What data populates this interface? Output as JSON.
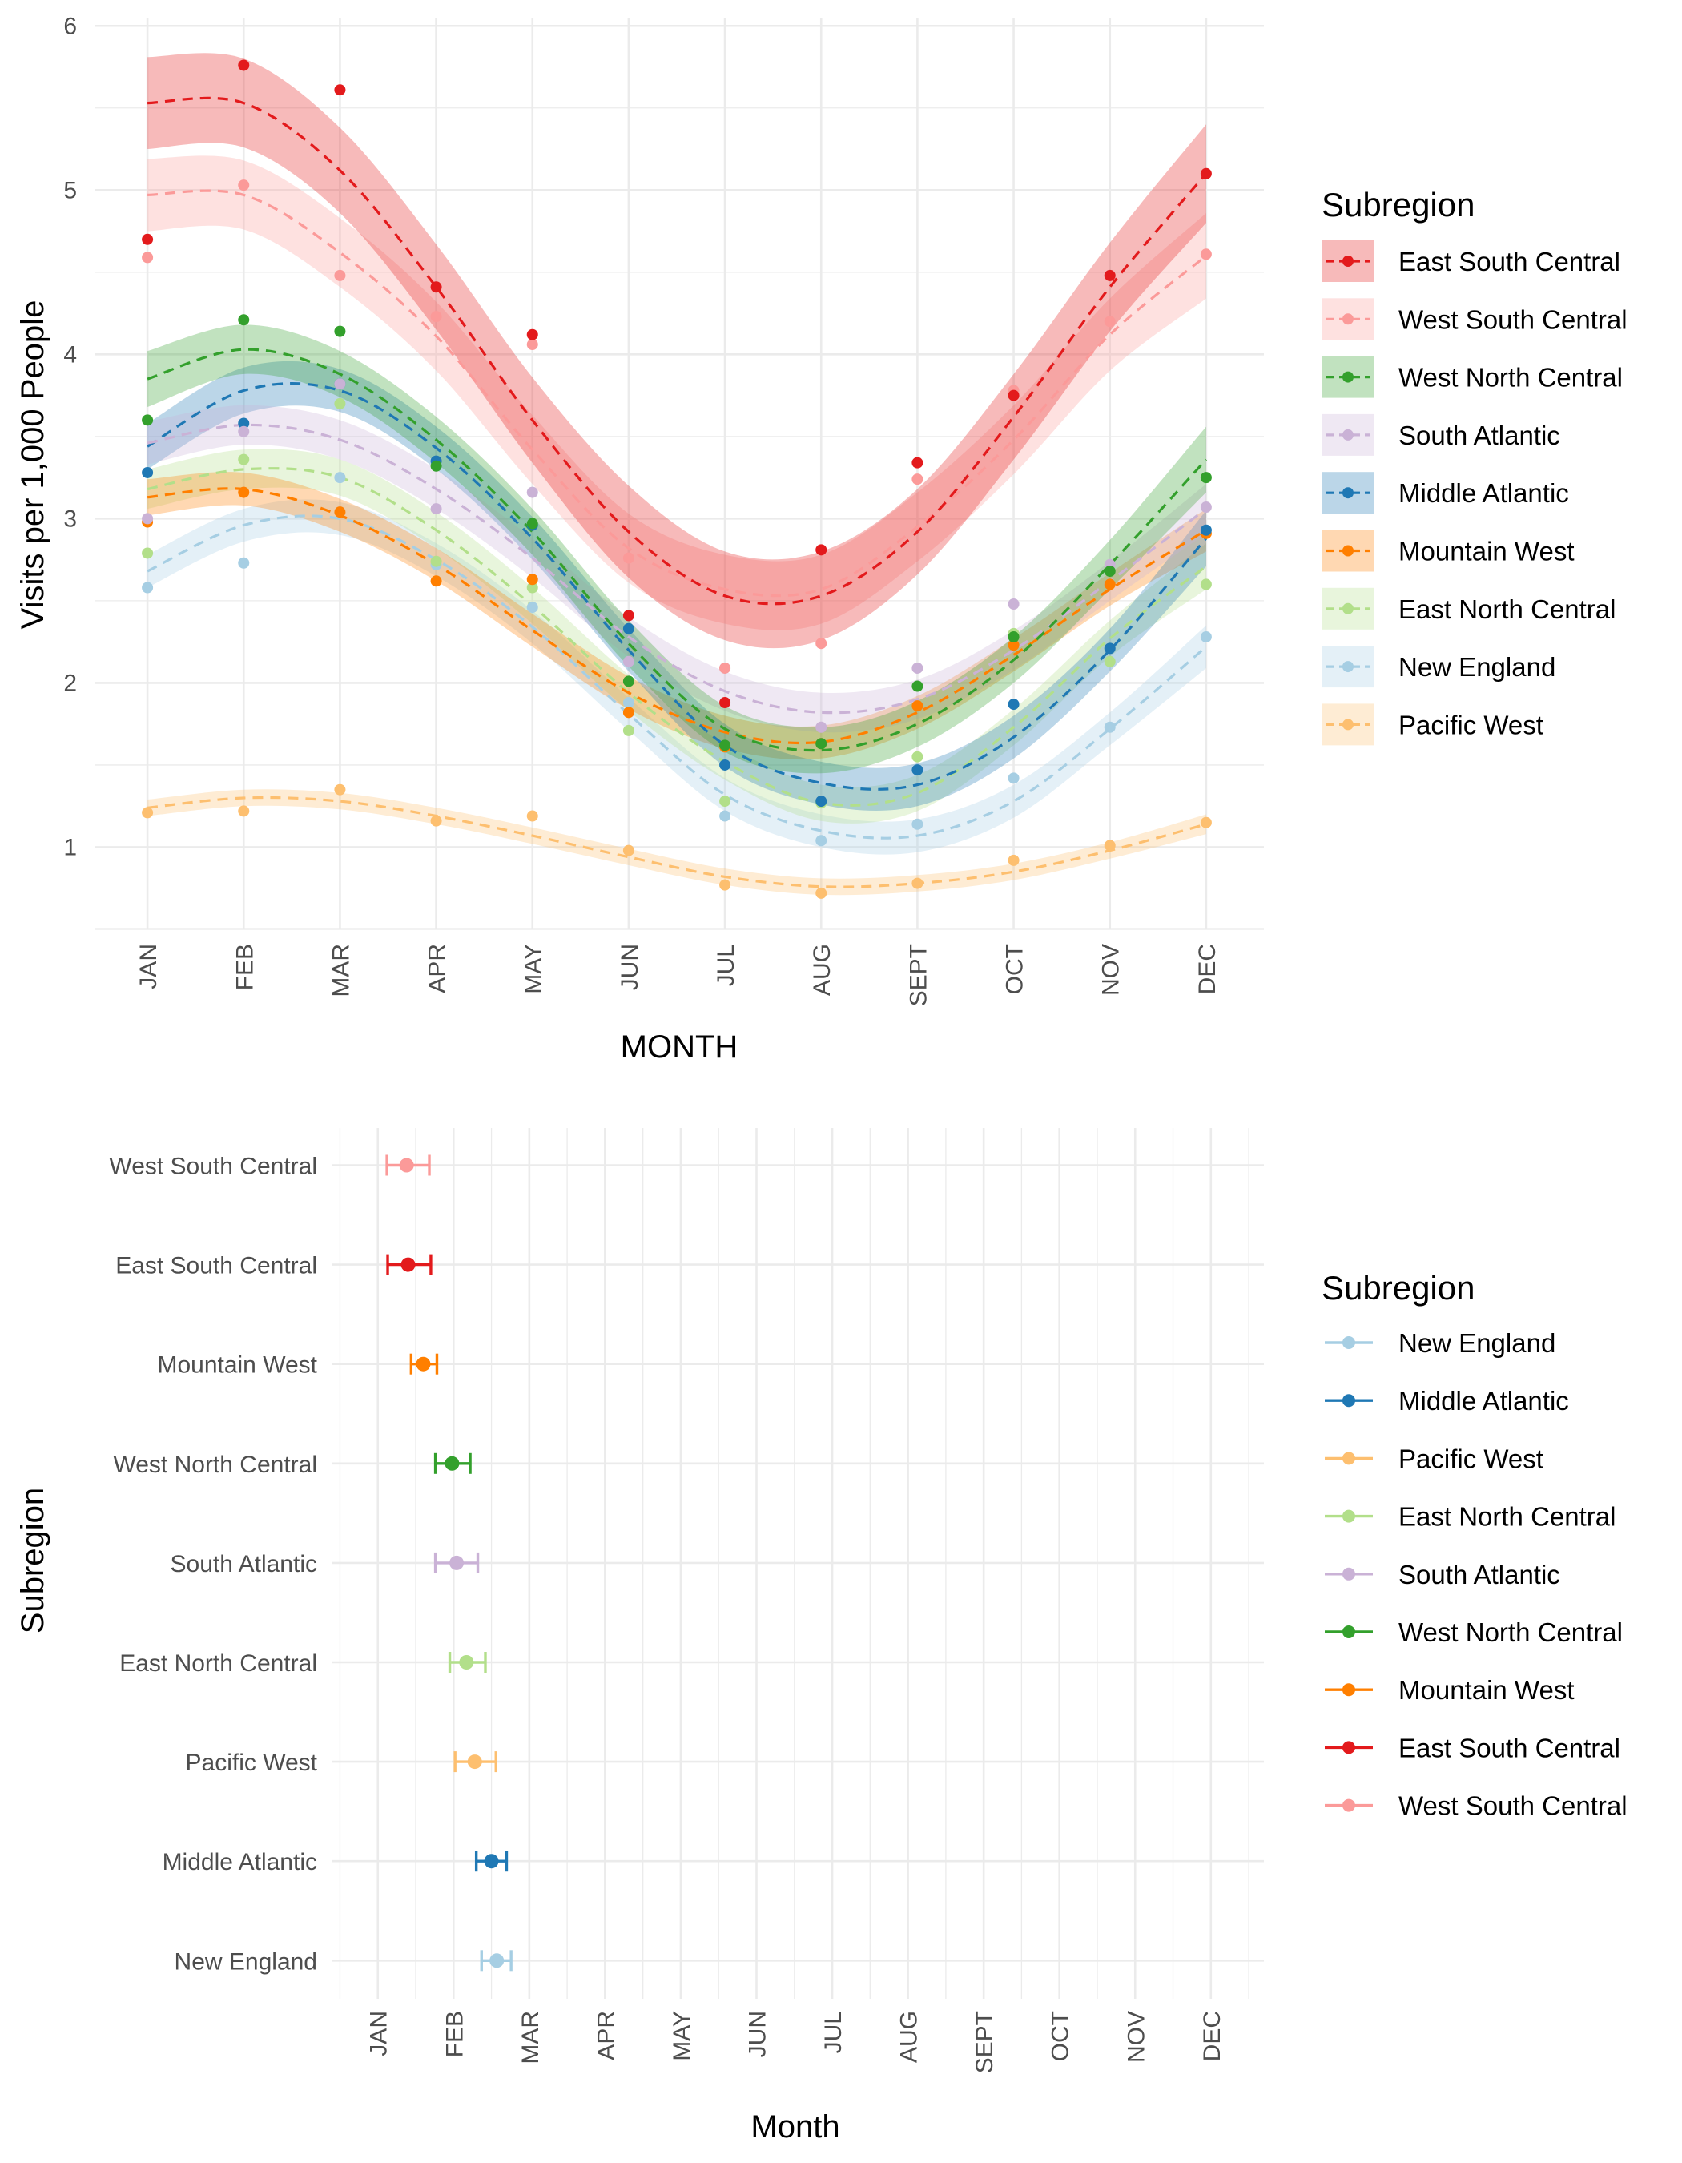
{
  "chart_data": [
    {
      "type": "line",
      "xlabel": "MONTH",
      "ylabel": "Visits per 1,000 People",
      "categories": [
        "JAN",
        "FEB",
        "MAR",
        "APR",
        "MAY",
        "JUN",
        "JUL",
        "AUG",
        "SEPT",
        "OCT",
        "NOV",
        "DEC"
      ],
      "ylim": [
        0.5,
        6.05
      ],
      "yticks": [
        "1",
        "2",
        "3",
        "4",
        "5",
        "6"
      ],
      "grid": true,
      "legend": {
        "title": "Subregion",
        "position": "right"
      },
      "series": [
        {
          "name": "East South Central",
          "color": "#e31a1c",
          "points": [
            4.7,
            5.76,
            5.61,
            4.41,
            4.12,
            2.41,
            1.88,
            2.81,
            3.34,
            3.75,
            4.48,
            5.1
          ],
          "fit": [
            5.53,
            5.53,
            5.12,
            4.41,
            3.6,
            2.92,
            2.53,
            2.53,
            2.92,
            3.62,
            4.41,
            5.1
          ],
          "ribbon": [
            0.28,
            0.27,
            0.26,
            0.26,
            0.26,
            0.28,
            0.27,
            0.27,
            0.26,
            0.26,
            0.27,
            0.3
          ]
        },
        {
          "name": "West South Central",
          "color": "#fb9a99",
          "points": [
            4.59,
            5.03,
            4.48,
            4.23,
            4.06,
            2.76,
            2.09,
            2.24,
            3.24,
            3.78,
            4.2,
            4.61
          ],
          "fit": [
            4.97,
            4.97,
            4.62,
            4.11,
            3.42,
            2.82,
            2.57,
            2.57,
            2.95,
            3.48,
            4.12,
            4.6
          ],
          "ribbon": [
            0.22,
            0.21,
            0.21,
            0.21,
            0.21,
            0.21,
            0.21,
            0.21,
            0.21,
            0.21,
            0.22,
            0.26
          ]
        },
        {
          "name": "West North Central",
          "color": "#33a02c",
          "points": [
            3.6,
            4.21,
            4.14,
            3.32,
            2.97,
            2.01,
            1.62,
            1.63,
            1.98,
            2.28,
            2.68,
            3.25
          ],
          "fit": [
            3.85,
            4.03,
            3.88,
            3.48,
            2.92,
            2.24,
            1.72,
            1.59,
            1.75,
            2.14,
            2.72,
            3.36
          ],
          "ribbon": [
            0.17,
            0.15,
            0.14,
            0.14,
            0.14,
            0.14,
            0.14,
            0.14,
            0.14,
            0.14,
            0.15,
            0.2
          ]
        },
        {
          "name": "South Atlantic",
          "color": "#cab2d6",
          "points": [
            3.0,
            3.53,
            3.82,
            3.06,
            3.16,
            2.13,
            2.09,
            1.73,
            2.09,
            2.48,
            2.72,
            3.07
          ],
          "fit": [
            3.46,
            3.57,
            3.48,
            3.18,
            2.76,
            2.28,
            1.95,
            1.82,
            1.9,
            2.2,
            2.62,
            3.06
          ],
          "ribbon": [
            0.13,
            0.12,
            0.12,
            0.12,
            0.12,
            0.12,
            0.12,
            0.12,
            0.12,
            0.12,
            0.12,
            0.15
          ]
        },
        {
          "name": "Middle Atlantic",
          "color": "#1f78b4",
          "points": [
            3.28,
            3.58,
            3.82,
            3.35,
            2.96,
            2.33,
            1.5,
            1.28,
            1.47,
            1.87,
            2.21,
            2.93
          ],
          "fit": [
            3.44,
            3.78,
            3.78,
            3.43,
            2.88,
            2.2,
            1.62,
            1.39,
            1.38,
            1.67,
            2.2,
            2.88
          ],
          "ribbon": [
            0.14,
            0.14,
            0.13,
            0.13,
            0.13,
            0.13,
            0.13,
            0.13,
            0.13,
            0.13,
            0.13,
            0.17
          ]
        },
        {
          "name": "Mountain West",
          "color": "#ff7f00",
          "points": [
            2.98,
            3.16,
            3.04,
            2.62,
            2.63,
            1.82,
            1.61,
            1.63,
            1.86,
            2.23,
            2.6,
            2.91
          ],
          "fit": [
            3.13,
            3.18,
            3.02,
            2.72,
            2.32,
            1.94,
            1.7,
            1.64,
            1.82,
            2.17,
            2.57,
            2.93
          ],
          "ribbon": [
            0.11,
            0.1,
            0.1,
            0.1,
            0.1,
            0.1,
            0.1,
            0.1,
            0.1,
            0.1,
            0.1,
            0.13
          ]
        },
        {
          "name": "East North Central",
          "color": "#b2df8a",
          "points": [
            2.79,
            3.36,
            3.7,
            2.74,
            2.58,
            1.71,
            1.28,
            1.27,
            1.55,
            2.3,
            2.13,
            2.6
          ],
          "fit": [
            3.18,
            3.3,
            3.25,
            2.93,
            2.47,
            1.94,
            1.52,
            1.27,
            1.33,
            1.73,
            2.27,
            2.71
          ],
          "ribbon": [
            0.12,
            0.12,
            0.11,
            0.11,
            0.11,
            0.11,
            0.11,
            0.11,
            0.11,
            0.11,
            0.11,
            0.14
          ]
        },
        {
          "name": "New England",
          "color": "#a6cee3",
          "points": [
            2.58,
            2.73,
            3.25,
            2.72,
            2.46,
            1.88,
            1.19,
            1.04,
            1.14,
            1.42,
            1.73,
            2.28
          ],
          "fit": [
            2.68,
            2.96,
            3.0,
            2.75,
            2.34,
            1.81,
            1.32,
            1.1,
            1.07,
            1.28,
            1.72,
            2.22
          ],
          "ribbon": [
            0.1,
            0.1,
            0.1,
            0.1,
            0.1,
            0.1,
            0.1,
            0.1,
            0.1,
            0.1,
            0.1,
            0.13
          ]
        },
        {
          "name": "Pacific West",
          "color": "#fdbf6f",
          "points": [
            1.21,
            1.22,
            1.35,
            1.16,
            1.19,
            0.98,
            0.77,
            0.72,
            0.78,
            0.92,
            1.01,
            1.15
          ],
          "fit": [
            1.24,
            1.3,
            1.28,
            1.19,
            1.07,
            0.94,
            0.82,
            0.76,
            0.78,
            0.85,
            0.98,
            1.14
          ],
          "ribbon": [
            0.05,
            0.05,
            0.05,
            0.05,
            0.05,
            0.05,
            0.05,
            0.05,
            0.05,
            0.05,
            0.05,
            0.06
          ]
        }
      ]
    },
    {
      "type": "scatter",
      "xlabel": "Month",
      "ylabel": "Subregion",
      "xticks": [
        "JAN",
        "FEB",
        "MAR",
        "APR",
        "MAY",
        "JUN",
        "JUL",
        "AUG",
        "SEPT",
        "OCT",
        "NOV",
        "DEC"
      ],
      "xlim": [
        0.4,
        12.7
      ],
      "grid": true,
      "legend": {
        "title": "Subregion",
        "position": "right",
        "entries": [
          "New England",
          "Middle Atlantic",
          "Pacific West",
          "East North Central",
          "South Atlantic",
          "West North Central",
          "Mountain West",
          "East South Central",
          "West South Central"
        ]
      },
      "series": [
        {
          "name": "West South Central",
          "color": "#fb9a99",
          "mean": 1.38,
          "low": 1.12,
          "high": 1.68
        },
        {
          "name": "East South Central",
          "color": "#e31a1c",
          "mean": 1.4,
          "low": 1.13,
          "high": 1.7
        },
        {
          "name": "Mountain West",
          "color": "#ff7f00",
          "mean": 1.6,
          "low": 1.44,
          "high": 1.78
        },
        {
          "name": "West North Central",
          "color": "#33a02c",
          "mean": 1.98,
          "low": 1.76,
          "high": 2.22
        },
        {
          "name": "South Atlantic",
          "color": "#cab2d6",
          "mean": 2.04,
          "low": 1.76,
          "high": 2.32
        },
        {
          "name": "East North Central",
          "color": "#b2df8a",
          "mean": 2.17,
          "low": 1.95,
          "high": 2.42
        },
        {
          "name": "Pacific West",
          "color": "#fdbf6f",
          "mean": 2.28,
          "low": 2.02,
          "high": 2.56
        },
        {
          "name": "Middle Atlantic",
          "color": "#1f78b4",
          "mean": 2.5,
          "low": 2.3,
          "high": 2.7
        },
        {
          "name": "New England",
          "color": "#a6cee3",
          "mean": 2.57,
          "low": 2.37,
          "high": 2.76
        }
      ]
    }
  ]
}
